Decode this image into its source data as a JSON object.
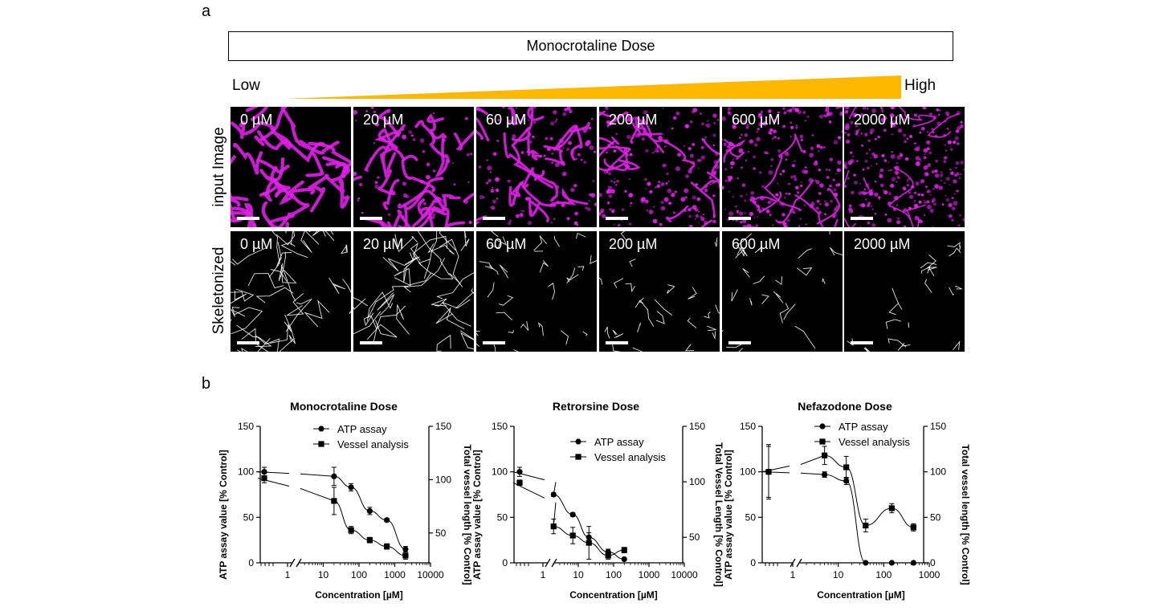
{
  "panel_a": {
    "letter": "a",
    "dose_box_label": "Monocrotaline Dose",
    "low_label": "Low",
    "high_label": "High",
    "wedge_color": "#FFB800",
    "row_labels": [
      "input Image",
      "Skeletonized"
    ],
    "doses": [
      "0 µM",
      "20 µM",
      "60 µM",
      "200 µM",
      "600 µM",
      "2000 µM"
    ],
    "image_color": "#E020E8"
  },
  "panel_b": {
    "letter": "b"
  },
  "chart_data": [
    {
      "type": "scatter",
      "title": "Monocrotaline Dose",
      "xlabel": "Concentration [µM]",
      "ylabel_left": "ATP assay value [% Control]",
      "ylabel_right": "Total vessel length [% Control]",
      "x_scale": "log",
      "x_ticks": [
        "1",
        "10",
        "100",
        "1000",
        "10000"
      ],
      "xlim": [
        1,
        10000
      ],
      "ylim_left": [
        0,
        150
      ],
      "yticks_left": [
        "0",
        "50",
        "100",
        "150"
      ],
      "ylim_right": [
        22,
        150
      ],
      "yticks_right": [
        "50",
        "100",
        "150"
      ],
      "legend": "top-right",
      "series": [
        {
          "name": "ATP assay",
          "marker": "circle",
          "x": [
            0,
            20,
            60,
            200,
            600,
            2000
          ],
          "y": [
            100,
            95,
            83,
            57,
            47,
            15
          ],
          "err": [
            5,
            10,
            4,
            4,
            2,
            3
          ]
        },
        {
          "name": "Vessel analysis",
          "marker": "square",
          "x": [
            0,
            20,
            60,
            200,
            600,
            2000
          ],
          "y": [
            93,
            68,
            36,
            25,
            18,
            8
          ],
          "err": [
            5,
            15,
            4,
            3,
            3,
            4
          ]
        }
      ]
    },
    {
      "type": "scatter",
      "title": "Retrorsine Dose",
      "xlabel": "Concentration [µM]",
      "ylabel_left": "ATP assay value [% Control]",
      "ylabel_right": "Total Vessel Length [% Control]",
      "x_scale": "log",
      "x_ticks": [
        "1",
        "10",
        "100",
        "1000",
        "10000"
      ],
      "xlim": [
        1,
        10000
      ],
      "ylim_left": [
        0,
        150
      ],
      "yticks_left": [
        "0",
        "50",
        "100",
        "150"
      ],
      "ylim_right": [
        27,
        150
      ],
      "yticks_right": [
        "50",
        "100",
        "150"
      ],
      "legend": "top-right",
      "series": [
        {
          "name": "ATP assay",
          "marker": "circle",
          "x": [
            0,
            2,
            7,
            20,
            70,
            200
          ],
          "y": [
            100,
            75,
            53,
            28,
            12,
            4
          ],
          "err": [
            5,
            2,
            2,
            5,
            3,
            1
          ]
        },
        {
          "name": "Vessel analysis",
          "marker": "square",
          "x": [
            0,
            2,
            7,
            20,
            70,
            200
          ],
          "y": [
            88,
            40,
            30,
            22,
            8,
            14
          ],
          "err": [
            3,
            8,
            9,
            18,
            4,
            3
          ]
        }
      ]
    },
    {
      "type": "scatter",
      "title": "Nefazodone Dose",
      "xlabel": "Concentration [µM]",
      "ylabel_left": "ATP assay value [% Control]",
      "ylabel_right": "Total vessel length [% Control]",
      "x_scale": "log",
      "x_ticks": [
        "1",
        "10",
        "100",
        "1000"
      ],
      "xlim": [
        1,
        1000
      ],
      "ylim_left": [
        0,
        150
      ],
      "yticks_left": [
        "0",
        "50",
        "100",
        "150"
      ],
      "ylim_right": [
        0,
        150
      ],
      "yticks_right": [
        "0",
        "50",
        "100",
        "150"
      ],
      "legend": "top-right",
      "series": [
        {
          "name": "ATP assay",
          "marker": "circle",
          "x": [
            0,
            5,
            15,
            40,
            150,
            450
          ],
          "y": [
            100,
            97,
            90,
            0,
            0,
            0
          ],
          "err": [
            30,
            3,
            4,
            0,
            0,
            0
          ]
        },
        {
          "name": "Vessel analysis",
          "marker": "square",
          "x": [
            0,
            5,
            15,
            40,
            150,
            450
          ],
          "y": [
            100,
            118,
            105,
            41,
            60,
            39
          ],
          "err": [
            28,
            10,
            12,
            7,
            5,
            4
          ]
        }
      ]
    }
  ]
}
